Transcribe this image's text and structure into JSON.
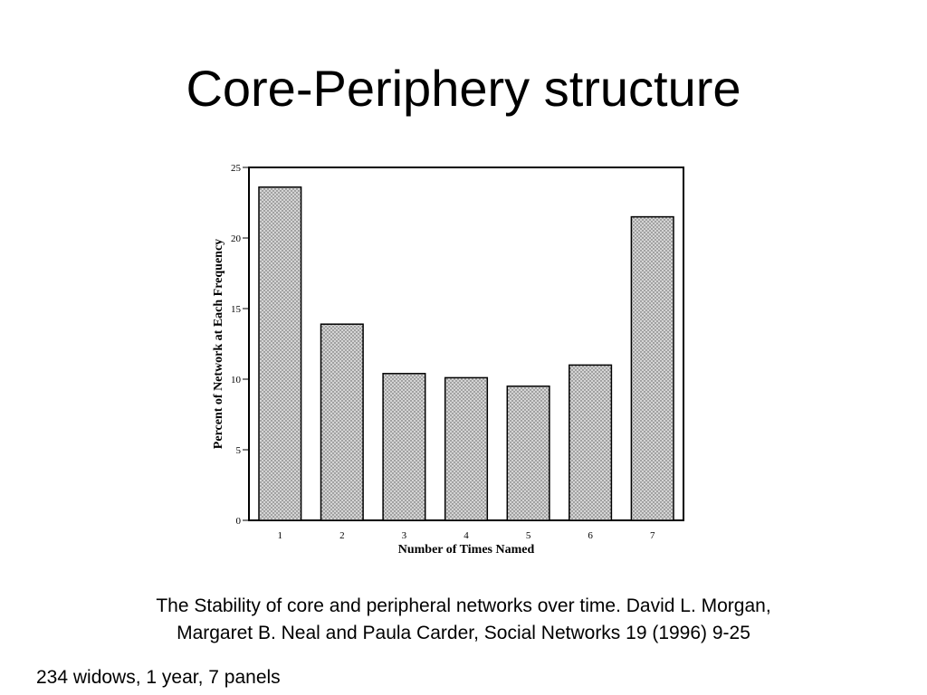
{
  "slide": {
    "title": "Core-Periphery structure",
    "caption_line1": "The Stability of core and peripheral networks over time. David L. Morgan,",
    "caption_line2": "Margaret B. Neal and Paula Carder, Social Networks 19 (1996) 9-25",
    "footnote": "234 widows, 1 year, 7 panels"
  },
  "chart_data": {
    "type": "bar",
    "categories": [
      "1",
      "2",
      "3",
      "4",
      "5",
      "6",
      "7"
    ],
    "values": [
      23.6,
      13.9,
      10.4,
      10.1,
      9.5,
      11.0,
      21.5
    ],
    "xlabel": "Number of Times Named",
    "ylabel": "Percent of Network at Each Frequency",
    "ylim": [
      0,
      25
    ],
    "yticks": [
      0,
      5,
      10,
      15,
      20,
      25
    ],
    "grid": false,
    "legend": "none",
    "bar_fill": "stippled",
    "colors": {
      "bar_fill": "#d4d4d4",
      "stipple": "#555555",
      "axis": "#000000"
    }
  }
}
